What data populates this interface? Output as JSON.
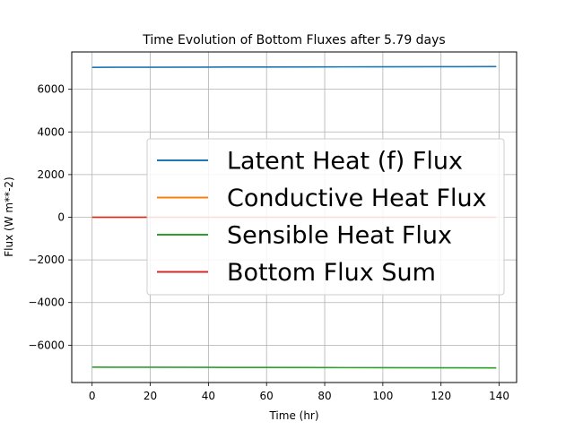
{
  "chart_data": {
    "type": "line",
    "title": "Time Evolution of Bottom Fluxes after 5.79 days",
    "xlabel": "Time (hr)",
    "ylabel": "Flux (W m**-2)",
    "xlim": [
      -7,
      146
    ],
    "ylim": [
      -7750,
      7750
    ],
    "xticks": [
      0,
      20,
      40,
      60,
      80,
      100,
      120,
      140
    ],
    "yticks": [
      -6000,
      -4000,
      -2000,
      0,
      2000,
      4000,
      6000
    ],
    "xtick_labels": [
      "0",
      "20",
      "40",
      "60",
      "80",
      "100",
      "120",
      "140"
    ],
    "ytick_labels": [
      "−6000",
      "−4000",
      "−2000",
      "0",
      "2000",
      "4000",
      "6000"
    ],
    "grid": true,
    "legend_position": "center-right",
    "x": [
      0,
      20,
      40,
      60,
      80,
      100,
      120,
      139
    ],
    "series": [
      {
        "name": "Latent Heat (f) Flux",
        "color": "#1f77b4",
        "values": [
          7030,
          7035,
          7040,
          7045,
          7050,
          7055,
          7060,
          7065
        ]
      },
      {
        "name": "Conductive Heat Flux",
        "color": "#ff7f0e",
        "values": [
          0,
          0,
          0,
          0,
          0,
          0,
          0,
          0
        ]
      },
      {
        "name": "Sensible Heat Flux",
        "color": "#2ca02c",
        "values": [
          -7030,
          -7035,
          -7040,
          -7045,
          -7050,
          -7055,
          -7060,
          -7065
        ]
      },
      {
        "name": "Bottom Flux Sum",
        "color": "#d62728",
        "values": [
          0,
          0,
          0,
          0,
          0,
          0,
          0,
          0
        ]
      }
    ]
  }
}
